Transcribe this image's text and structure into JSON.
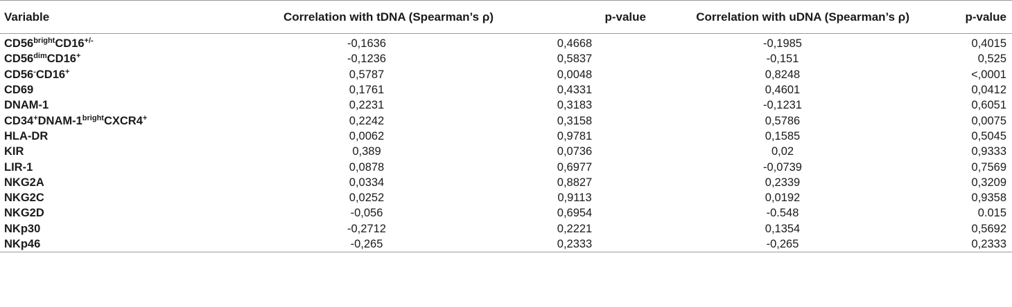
{
  "header": {
    "variable": "Variable",
    "corr_tdna": "Correlation with tDNA (Spearman’s ρ)",
    "p_tdna": "p-value",
    "corr_udna": "Correlation with uDNA (Spearman’s ρ)",
    "p_udna": "p-value"
  },
  "rows": [
    {
      "var_parts": [
        [
          "CD56",
          ""
        ],
        [
          "bright",
          "sup"
        ],
        [
          "CD16",
          ""
        ],
        [
          "+/-",
          "sup"
        ]
      ],
      "corr_t": "-0,1636",
      "p_t": "0,4668",
      "corr_u": "-0,1985",
      "p_u": "0,4015"
    },
    {
      "var_parts": [
        [
          "CD56",
          ""
        ],
        [
          "dim",
          "sup"
        ],
        [
          "CD16",
          ""
        ],
        [
          "+",
          "sup"
        ]
      ],
      "corr_t": "-0,1236",
      "p_t": "0,5837",
      "corr_u": "-0,151",
      "p_u": "0,525"
    },
    {
      "var_parts": [
        [
          "CD56",
          ""
        ],
        [
          "-",
          "sup"
        ],
        [
          "CD16",
          ""
        ],
        [
          "+",
          "sup"
        ]
      ],
      "corr_t": "0,5787",
      "p_t": "0,0048",
      "corr_u": "0,8248",
      "p_u": "<,0001"
    },
    {
      "var_parts": [
        [
          "CD69",
          ""
        ]
      ],
      "corr_t": "0,1761",
      "p_t": "0,4331",
      "corr_u": "0,4601",
      "p_u": "0,0412"
    },
    {
      "var_parts": [
        [
          "DNAM-1",
          ""
        ]
      ],
      "corr_t": "0,2231",
      "p_t": "0,3183",
      "corr_u": "-0,1231",
      "p_u": "0,6051"
    },
    {
      "var_parts": [
        [
          "CD34",
          ""
        ],
        [
          "+",
          "sup"
        ],
        [
          "DNAM-1",
          ""
        ],
        [
          "bright",
          "sup"
        ],
        [
          "CXCR4",
          ""
        ],
        [
          "+",
          "sup"
        ]
      ],
      "corr_t": "0,2242",
      "p_t": "0,3158",
      "corr_u": "0,5786",
      "p_u": "0,0075"
    },
    {
      "var_parts": [
        [
          "HLA-DR",
          ""
        ]
      ],
      "corr_t": "0,0062",
      "p_t": "0,9781",
      "corr_u": "0,1585",
      "p_u": "0,5045"
    },
    {
      "var_parts": [
        [
          "KIR",
          ""
        ]
      ],
      "corr_t": "0,389",
      "p_t": "0,0736",
      "corr_u": "0,02",
      "p_u": "0,9333"
    },
    {
      "var_parts": [
        [
          "LIR-1",
          ""
        ]
      ],
      "corr_t": "0,0878",
      "p_t": "0,6977",
      "corr_u": "-0,0739",
      "p_u": "0,7569"
    },
    {
      "var_parts": [
        [
          "NKG2A",
          ""
        ]
      ],
      "corr_t": "0,0334",
      "p_t": "0,8827",
      "corr_u": "0,2339",
      "p_u": "0,3209"
    },
    {
      "var_parts": [
        [
          "NKG2C",
          ""
        ]
      ],
      "corr_t": "0,0252",
      "p_t": "0,9113",
      "corr_u": "0,0192",
      "p_u": "0,9358"
    },
    {
      "var_parts": [
        [
          "NKG2D",
          ""
        ]
      ],
      "corr_t": "-0,056",
      "p_t": "0,6954",
      "corr_u": "-0.548",
      "p_u": "0.015"
    },
    {
      "var_parts": [
        [
          "NKp30",
          ""
        ]
      ],
      "corr_t": "-0,2712",
      "p_t": "0,2221",
      "corr_u": "0,1354",
      "p_u": "0,5692"
    },
    {
      "var_parts": [
        [
          "NKp46",
          ""
        ]
      ],
      "corr_t": "-0,265",
      "p_t": "0,2333",
      "corr_u": "-0,265",
      "p_u": "0,2333"
    }
  ]
}
